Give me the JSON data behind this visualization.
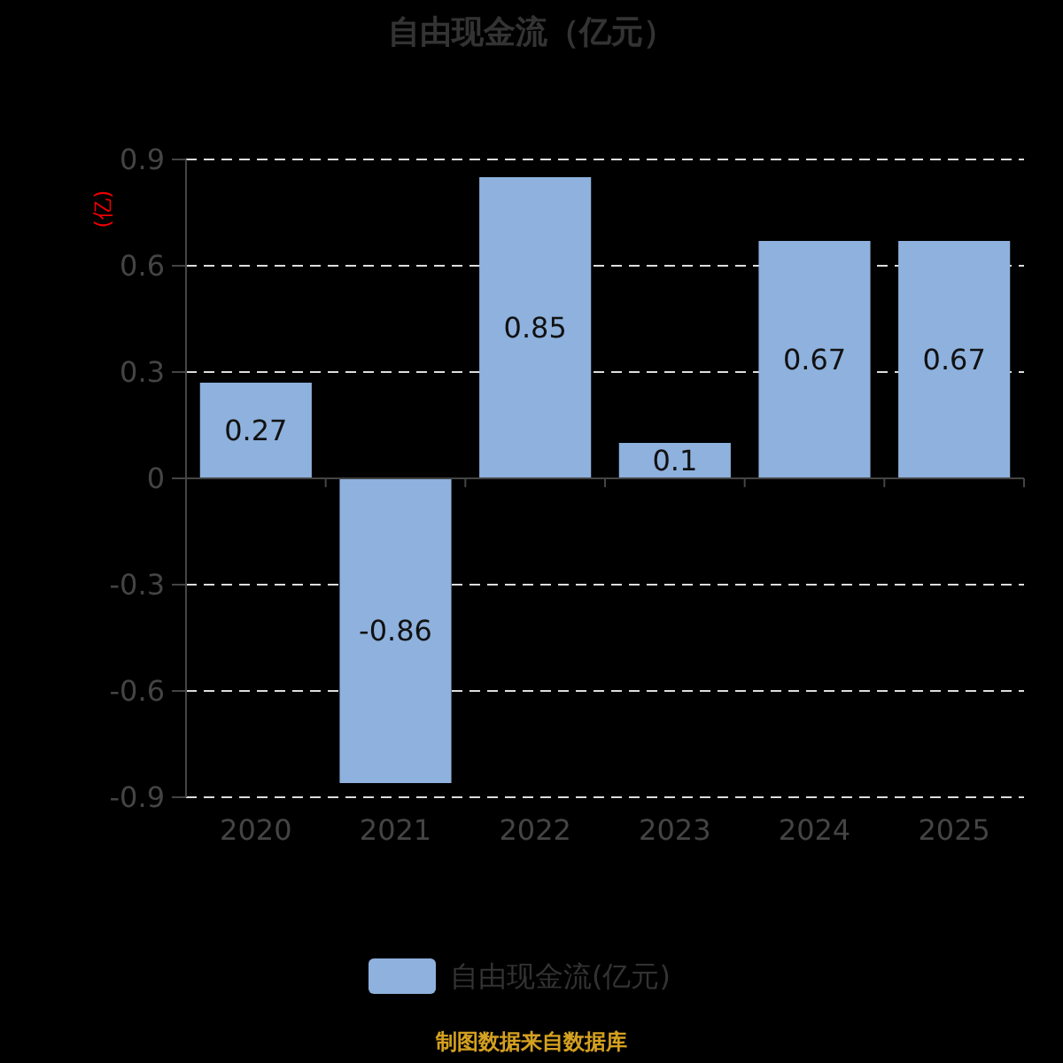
{
  "chart_data": {
    "type": "bar",
    "title": "自由现金流（亿元）",
    "ylabel": "(亿)",
    "categories": [
      "2020",
      "2021",
      "2022",
      "2023",
      "2024",
      "2025"
    ],
    "series": [
      {
        "name": "自由现金流(亿元)",
        "color": "#8eb1dd",
        "values": [
          0.27,
          -0.86,
          0.85,
          0.1,
          0.67,
          0.67
        ]
      }
    ],
    "ylim": [
      -0.9,
      0.9
    ],
    "yticks": [
      -0.9,
      -0.6,
      -0.3,
      0,
      0.3,
      0.6,
      0.9
    ],
    "grid": "y",
    "legend": "bottom",
    "data_labels": true,
    "annotations": [
      "制图数据来自数据库"
    ]
  }
}
